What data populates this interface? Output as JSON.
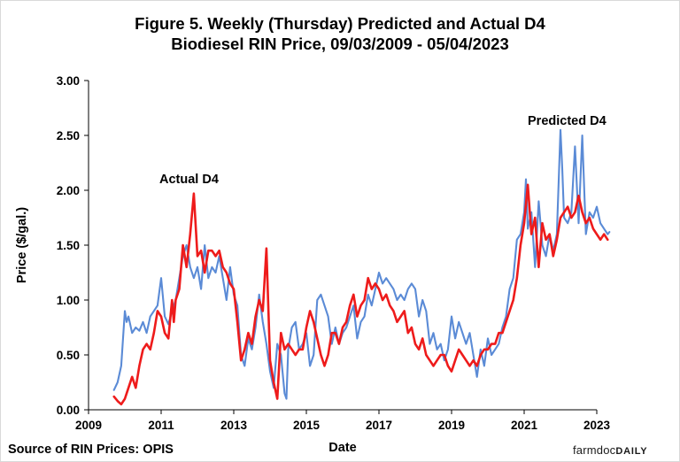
{
  "chart_data": {
    "type": "line",
    "title_line1": "Figure 5. Weekly (Thursday) Predicted and Actual D4",
    "title_line2": "Biodiesel RIN Price, 09/03/2009  - 05/04/2023",
    "xlabel": "Date",
    "ylabel": "Price ($/gal.)",
    "xlim": [
      2009,
      2023
    ],
    "ylim": [
      0,
      3
    ],
    "x_ticks": [
      2009,
      2011,
      2013,
      2015,
      2017,
      2019,
      2021,
      2023
    ],
    "x_tick_labels": [
      "2009",
      "2011",
      "2013",
      "2015",
      "2017",
      "2019",
      "2021",
      "2023"
    ],
    "y_ticks": [
      0,
      0.5,
      1,
      1.5,
      2,
      2.5,
      3
    ],
    "y_tick_labels": [
      "0.00",
      "0.50",
      "1.00",
      "1.50",
      "2.00",
      "2.50",
      "3.00"
    ],
    "series": [
      {
        "name": "Predicted D4",
        "label": "Predicted D4",
        "color": "#5b8bd6",
        "x": [
          2009.7,
          2009.8,
          2009.9,
          2010.0,
          2010.05,
          2010.1,
          2010.2,
          2010.3,
          2010.4,
          2010.5,
          2010.6,
          2010.7,
          2010.8,
          2010.9,
          2011.0,
          2011.1,
          2011.2,
          2011.3,
          2011.4,
          2011.5,
          2011.6,
          2011.7,
          2011.8,
          2011.9,
          2012.0,
          2012.1,
          2012.2,
          2012.3,
          2012.4,
          2012.5,
          2012.6,
          2012.7,
          2012.8,
          2012.9,
          2013.0,
          2013.1,
          2013.2,
          2013.3,
          2013.4,
          2013.5,
          2013.6,
          2013.7,
          2013.8,
          2013.9,
          2014.0,
          2014.1,
          2014.2,
          2014.3,
          2014.4,
          2014.45,
          2014.5,
          2014.6,
          2014.7,
          2014.8,
          2014.9,
          2015.0,
          2015.1,
          2015.2,
          2015.3,
          2015.4,
          2015.5,
          2015.6,
          2015.7,
          2015.8,
          2015.9,
          2016.0,
          2016.1,
          2016.2,
          2016.3,
          2016.4,
          2016.5,
          2016.6,
          2016.7,
          2016.8,
          2016.9,
          2017.0,
          2017.1,
          2017.2,
          2017.3,
          2017.4,
          2017.5,
          2017.6,
          2017.7,
          2017.8,
          2017.9,
          2018.0,
          2018.1,
          2018.2,
          2018.3,
          2018.4,
          2018.5,
          2018.6,
          2018.7,
          2018.8,
          2018.9,
          2019.0,
          2019.1,
          2019.2,
          2019.3,
          2019.4,
          2019.5,
          2019.6,
          2019.7,
          2019.8,
          2019.9,
          2020.0,
          2020.1,
          2020.2,
          2020.3,
          2020.4,
          2020.5,
          2020.6,
          2020.7,
          2020.8,
          2020.9,
          2021.0,
          2021.05,
          2021.1,
          2021.2,
          2021.3,
          2021.4,
          2021.5,
          2021.6,
          2021.7,
          2021.8,
          2021.9,
          2022.0,
          2022.05,
          2022.1,
          2022.2,
          2022.3,
          2022.4,
          2022.5,
          2022.6,
          2022.7,
          2022.8,
          2022.9,
          2023.0,
          2023.1,
          2023.2,
          2023.3,
          2023.35
        ],
        "y": [
          0.18,
          0.25,
          0.4,
          0.9,
          0.8,
          0.85,
          0.7,
          0.75,
          0.72,
          0.8,
          0.7,
          0.85,
          0.9,
          0.95,
          1.2,
          0.85,
          0.78,
          0.9,
          1.0,
          1.2,
          1.4,
          1.5,
          1.3,
          1.2,
          1.3,
          1.1,
          1.5,
          1.2,
          1.3,
          1.25,
          1.4,
          1.2,
          1.0,
          1.3,
          1.05,
          0.95,
          0.5,
          0.4,
          0.65,
          0.55,
          0.75,
          1.05,
          0.8,
          0.6,
          0.35,
          0.2,
          0.6,
          0.5,
          0.15,
          0.1,
          0.55,
          0.75,
          0.8,
          0.55,
          0.6,
          0.7,
          0.4,
          0.5,
          1.0,
          1.05,
          0.95,
          0.85,
          0.6,
          0.75,
          0.6,
          0.7,
          0.75,
          0.85,
          0.95,
          0.65,
          0.8,
          0.85,
          1.05,
          0.95,
          1.1,
          1.25,
          1.15,
          1.2,
          1.15,
          1.1,
          1.0,
          1.05,
          1.0,
          1.1,
          1.15,
          1.1,
          0.85,
          1.0,
          0.9,
          0.6,
          0.7,
          0.55,
          0.6,
          0.45,
          0.55,
          0.85,
          0.65,
          0.8,
          0.7,
          0.6,
          0.7,
          0.5,
          0.3,
          0.55,
          0.4,
          0.65,
          0.5,
          0.55,
          0.6,
          0.75,
          0.85,
          1.1,
          1.2,
          1.55,
          1.6,
          1.8,
          2.1,
          1.65,
          1.8,
          1.3,
          1.9,
          1.5,
          1.4,
          1.6,
          1.45,
          1.6,
          2.55,
          2.2,
          1.75,
          1.7,
          1.8,
          2.4,
          1.7,
          2.5,
          1.6,
          1.8,
          1.75,
          1.85,
          1.7,
          1.65,
          1.6,
          1.62
        ]
      },
      {
        "name": "Actual D4",
        "label": "Actual D4",
        "color": "#ee1b1b",
        "x": [
          2009.7,
          2009.8,
          2009.9,
          2010.0,
          2010.1,
          2010.2,
          2010.3,
          2010.4,
          2010.5,
          2010.6,
          2010.7,
          2010.8,
          2010.9,
          2011.0,
          2011.1,
          2011.2,
          2011.3,
          2011.35,
          2011.4,
          2011.5,
          2011.6,
          2011.7,
          2011.8,
          2011.9,
          2012.0,
          2012.1,
          2012.2,
          2012.3,
          2012.4,
          2012.5,
          2012.6,
          2012.7,
          2012.8,
          2012.9,
          2013.0,
          2013.1,
          2013.2,
          2013.3,
          2013.4,
          2013.5,
          2013.6,
          2013.7,
          2013.8,
          2013.9,
          2014.0,
          2014.1,
          2014.2,
          2014.3,
          2014.4,
          2014.5,
          2014.6,
          2014.7,
          2014.8,
          2014.9,
          2015.0,
          2015.1,
          2015.2,
          2015.3,
          2015.4,
          2015.5,
          2015.6,
          2015.7,
          2015.8,
          2015.9,
          2016.0,
          2016.1,
          2016.2,
          2016.3,
          2016.4,
          2016.5,
          2016.6,
          2016.7,
          2016.8,
          2016.9,
          2017.0,
          2017.1,
          2017.2,
          2017.3,
          2017.4,
          2017.5,
          2017.6,
          2017.7,
          2017.8,
          2017.9,
          2018.0,
          2018.1,
          2018.2,
          2018.3,
          2018.4,
          2018.5,
          2018.6,
          2018.7,
          2018.8,
          2018.9,
          2019.0,
          2019.1,
          2019.2,
          2019.3,
          2019.4,
          2019.5,
          2019.6,
          2019.7,
          2019.8,
          2019.9,
          2020.0,
          2020.1,
          2020.2,
          2020.3,
          2020.4,
          2020.5,
          2020.6,
          2020.7,
          2020.8,
          2020.9,
          2021.0,
          2021.1,
          2021.2,
          2021.3,
          2021.4,
          2021.5,
          2021.6,
          2021.7,
          2021.8,
          2021.9,
          2022.0,
          2022.1,
          2022.2,
          2022.3,
          2022.4,
          2022.5,
          2022.6,
          2022.7,
          2022.8,
          2022.9,
          2023.0,
          2023.1,
          2023.2,
          2023.3
        ],
        "y": [
          0.12,
          0.08,
          0.05,
          0.1,
          0.2,
          0.3,
          0.2,
          0.4,
          0.55,
          0.6,
          0.55,
          0.7,
          0.9,
          0.85,
          0.7,
          0.65,
          1.0,
          0.8,
          1.0,
          1.1,
          1.5,
          1.3,
          1.6,
          1.97,
          1.4,
          1.45,
          1.25,
          1.45,
          1.45,
          1.4,
          1.45,
          1.3,
          1.25,
          1.15,
          1.1,
          0.8,
          0.45,
          0.55,
          0.7,
          0.6,
          0.85,
          1.0,
          0.9,
          1.47,
          0.45,
          0.25,
          0.1,
          0.7,
          0.55,
          0.6,
          0.55,
          0.5,
          0.55,
          0.55,
          0.75,
          0.9,
          0.8,
          0.65,
          0.5,
          0.4,
          0.5,
          0.7,
          0.7,
          0.6,
          0.75,
          0.8,
          0.95,
          1.05,
          0.85,
          0.95,
          1.0,
          1.2,
          1.1,
          1.15,
          1.1,
          1.0,
          1.05,
          0.95,
          0.9,
          0.8,
          0.85,
          0.9,
          0.7,
          0.75,
          0.6,
          0.55,
          0.65,
          0.5,
          0.45,
          0.4,
          0.45,
          0.5,
          0.5,
          0.4,
          0.35,
          0.45,
          0.55,
          0.5,
          0.45,
          0.4,
          0.45,
          0.4,
          0.5,
          0.55,
          0.55,
          0.6,
          0.6,
          0.7,
          0.7,
          0.8,
          0.9,
          1.0,
          1.2,
          1.5,
          1.7,
          2.05,
          1.6,
          1.75,
          1.3,
          1.7,
          1.55,
          1.6,
          1.4,
          1.55,
          1.75,
          1.8,
          1.85,
          1.75,
          1.8,
          1.95,
          1.8,
          1.7,
          1.75,
          1.65,
          1.6,
          1.55,
          1.6,
          1.55
        ]
      }
    ],
    "annotations": [
      {
        "text": "Actual D4",
        "series": "Actual D4"
      },
      {
        "text": "Predicted D4",
        "series": "Predicted D4"
      }
    ],
    "grid": false,
    "legend": "none"
  },
  "footer": {
    "source": "Source of RIN Prices: OPIS",
    "logo_main": "farmdoc",
    "logo_daily": "DAILY"
  }
}
